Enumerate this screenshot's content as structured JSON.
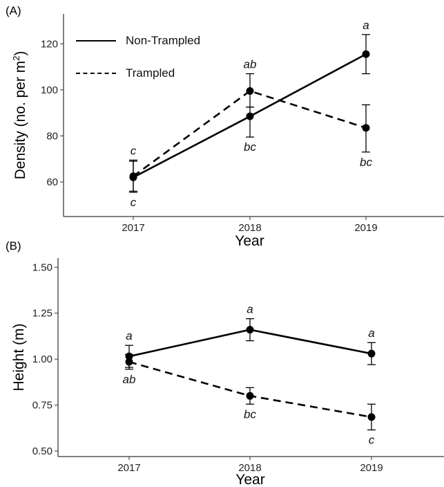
{
  "panels": {
    "a_label": "(A)",
    "b_label": "(B)"
  },
  "legend": {
    "solid_label": "Non-Trampled",
    "dashed_label": "Trampled"
  },
  "chart_data": [
    {
      "type": "line",
      "panel": "(A)",
      "categories": [
        "2017",
        "2018",
        "2019"
      ],
      "xlabel": "Year",
      "ylabel": "Density (no. per m",
      "ylabel_sup": "2",
      "ylabel_close": ")",
      "ylim": [
        45,
        133
      ],
      "yticks": [
        60,
        80,
        100,
        120
      ],
      "grid": false,
      "legend_position": "top-left",
      "series": [
        {
          "name": "Non-Trampled",
          "line_style": "solid",
          "values": [
            62,
            88.5,
            115.5
          ],
          "error_low": [
            55.5,
            79.5,
            107
          ],
          "error_high": [
            69,
            92.5,
            124
          ],
          "letters": [
            "c",
            "bc",
            "a"
          ],
          "letter_position": [
            "below",
            "below",
            "above"
          ]
        },
        {
          "name": "Trampled",
          "line_style": "dashed",
          "values": [
            62.5,
            99.5,
            83.5
          ],
          "error_low": [
            56,
            92.5,
            73
          ],
          "error_high": [
            69.5,
            107,
            93.5
          ],
          "letters": [
            "c",
            "ab",
            "bc"
          ],
          "letter_position": [
            "above",
            "above",
            "below"
          ]
        }
      ]
    },
    {
      "type": "line",
      "panel": "(B)",
      "categories": [
        "2017",
        "2018",
        "2019"
      ],
      "xlabel": "Year",
      "ylabel": "Height (m)",
      "ylim": [
        0.47,
        1.55
      ],
      "yticks": [
        "0.50",
        "0.75",
        "1.00",
        "1.25",
        "1.50"
      ],
      "grid": false,
      "series": [
        {
          "name": "Non-Trampled",
          "line_style": "solid",
          "values": [
            1.015,
            1.16,
            1.03
          ],
          "error_low": [
            0.955,
            1.1,
            0.97
          ],
          "error_high": [
            1.075,
            1.22,
            1.09
          ],
          "letters": [
            "a",
            "a",
            "a"
          ],
          "letter_position": [
            "above",
            "above",
            "above"
          ]
        },
        {
          "name": "Trampled",
          "line_style": "dashed",
          "values": [
            0.985,
            0.8,
            0.685
          ],
          "error_low": [
            0.945,
            0.755,
            0.615
          ],
          "error_high": [
            1.025,
            0.845,
            0.755
          ],
          "letters": [
            "ab",
            "bc",
            "c"
          ],
          "letter_position": [
            "below",
            "below",
            "below"
          ]
        }
      ]
    }
  ]
}
